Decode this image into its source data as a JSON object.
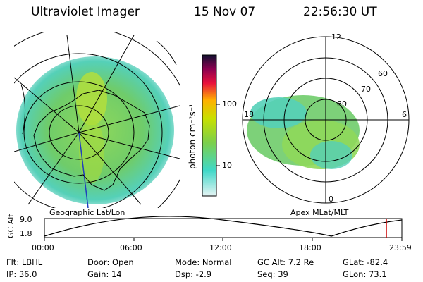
{
  "header": {
    "title": "Ultraviolet Imager",
    "date": "15 Nov 07",
    "time": "22:56:30 UT"
  },
  "left_map": {
    "caption": "Geographic Lat/Lon"
  },
  "right_map": {
    "caption": "Apex  MLat/MLT",
    "mlt_labels": {
      "top": "12",
      "left": "18",
      "right": "6",
      "bottom": "0"
    },
    "lat_labels": [
      "60",
      "70",
      "80"
    ]
  },
  "colorbar": {
    "unit_label": "photon cm⁻²s⁻¹",
    "ticks": [
      "100",
      "10"
    ],
    "colors": [
      "#e6f4f4",
      "#40d8c8",
      "#7ccf4a",
      "#c8e000",
      "#ffb000",
      "#e8103c",
      "#8c0050",
      "#101030"
    ]
  },
  "altitude_plot": {
    "ylabel": "GC Alt",
    "yticks": [
      "9.0",
      "1.8"
    ],
    "xticks": [
      "00:00",
      "06:00",
      "12:00",
      "18:00",
      "23:59"
    ],
    "current_marker_color": "#cc0000"
  },
  "info": {
    "filter": "Flt: LBHL",
    "ip": "IP: 36.0",
    "door": "Door: Open",
    "gain": "Gain: 14",
    "mode": "Mode: Normal",
    "dsp": "Dsp:    -2.9",
    "gc_alt": "GC Alt: 7.2 Re",
    "seq": "Seq: 39",
    "glat": "GLat: -82.4",
    "glon": "GLon:  73.1"
  }
}
